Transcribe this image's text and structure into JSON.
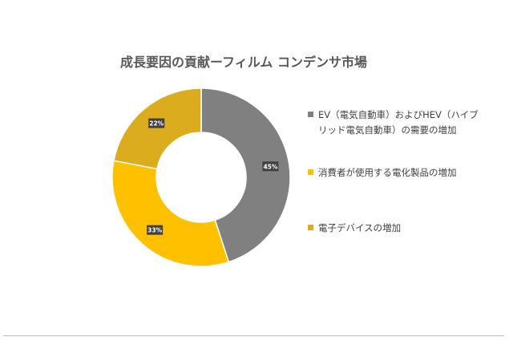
{
  "chart_data": {
    "type": "pie",
    "variant": "donut",
    "title": "成長要因の貢献ーフィルム コンデンサ市場",
    "categories": [
      "EV（電気自動車）およびHEV（ハイブリッド電気自動車）の需要の増加",
      "消費者が使用する電化製品の増加",
      "電子デバイスの増加"
    ],
    "values": [
      45,
      33,
      22
    ],
    "data_labels": [
      "45%",
      "33%",
      "22%"
    ],
    "colors": [
      "#808080",
      "#ffc000",
      "#dbac1e"
    ],
    "legend_position": "right"
  }
}
